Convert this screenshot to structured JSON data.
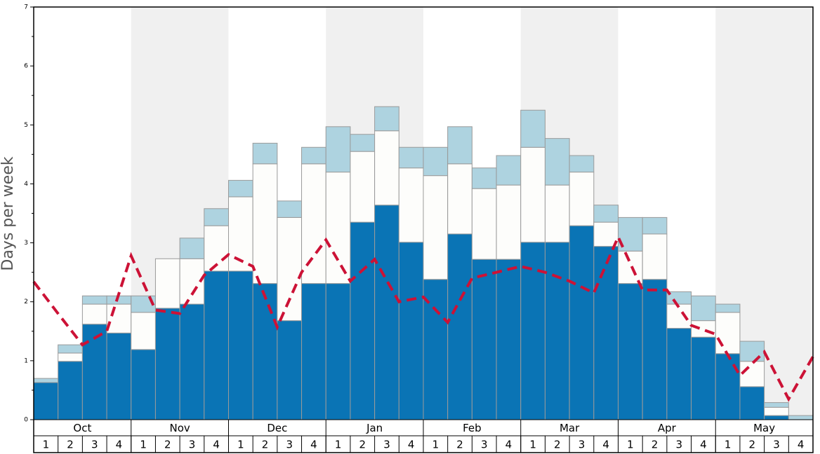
{
  "chart_data": {
    "type": "stacked-bar",
    "y_label": "Days per week",
    "months": [
      "Oct",
      "Nov",
      "Dec",
      "Jan",
      "Feb",
      "Mar",
      "Apr",
      "May"
    ],
    "categories": [
      "1",
      "2",
      "3",
      "4",
      "1",
      "2",
      "3",
      "4",
      "1",
      "2",
      "3",
      "4",
      "1",
      "2",
      "3",
      "4",
      "1",
      "2",
      "3",
      "4",
      "1",
      "2",
      "3",
      "4",
      "1",
      "2",
      "3",
      "4",
      "1",
      "2",
      "3",
      "4"
    ],
    "shade_alternate_months": true,
    "ylim": [
      0,
      7
    ],
    "yticks": [
      0,
      1,
      2,
      3,
      4,
      5,
      6,
      7
    ],
    "series": [
      {
        "color": "#0a74b5",
        "values": [
          0.63,
          0.99,
          1.62,
          1.47,
          1.19,
          1.89,
          1.96,
          2.52,
          2.52,
          2.31,
          1.68,
          2.31,
          2.31,
          3.35,
          3.64,
          3.01,
          2.38,
          3.15,
          2.72,
          2.72,
          3.01,
          3.01,
          3.29,
          2.94,
          2.31,
          2.38,
          1.55,
          1.4,
          1.12,
          0.56,
          0.07,
          0
        ]
      },
      {
        "color": "#fdfdfb",
        "values": [
          0,
          0.14,
          0.34,
          0.49,
          0.63,
          0.84,
          0.77,
          0.77,
          1.26,
          2.03,
          1.75,
          2.03,
          1.89,
          1.2,
          1.26,
          1.26,
          1.76,
          1.19,
          1.2,
          1.26,
          1.61,
          0.97,
          0.91,
          0.41,
          0.55,
          0.77,
          0.41,
          0.28,
          0.7,
          0.43,
          0.14,
          0
        ]
      },
      {
        "color": "#aed3e0",
        "values": [
          0.07,
          0.14,
          0.14,
          0.14,
          0.28,
          0,
          0.35,
          0.29,
          0.28,
          0.35,
          0.28,
          0.28,
          0.77,
          0.29,
          0.41,
          0.35,
          0.48,
          0.63,
          0.35,
          0.5,
          0.63,
          0.79,
          0.28,
          0.29,
          0.57,
          0.28,
          0.21,
          0.42,
          0.14,
          0.34,
          0.08,
          0.07
        ]
      }
    ],
    "line": {
      "color": "#cc1236",
      "xlim": [
        0,
        32
      ],
      "x": [
        0,
        1,
        2,
        3,
        4,
        5,
        6,
        7,
        8,
        9,
        10,
        11,
        12,
        13,
        14,
        15,
        16,
        17,
        18,
        19,
        20,
        21,
        22,
        23,
        24,
        25,
        26,
        27,
        28,
        29,
        30,
        31,
        32
      ],
      "values": [
        2.34,
        1.8,
        1.27,
        1.5,
        2.78,
        1.86,
        1.8,
        2.45,
        2.8,
        2.6,
        1.57,
        2.5,
        3.05,
        2.35,
        2.72,
        2.0,
        2.08,
        1.65,
        2.4,
        2.5,
        2.6,
        2.5,
        2.35,
        2.15,
        3.1,
        2.2,
        2.2,
        1.6,
        1.45,
        0.75,
        1.15,
        0.35,
        1.07
      ]
    }
  }
}
